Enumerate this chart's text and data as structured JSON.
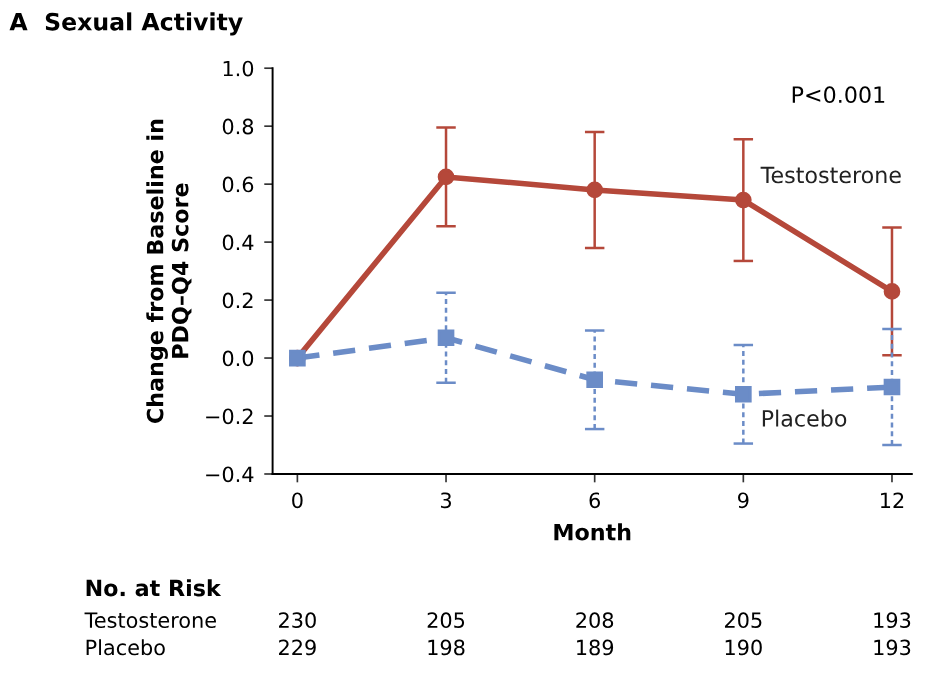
{
  "chart_data": {
    "type": "line",
    "title": "A  Sexual Activity",
    "xlabel": "Month",
    "ylabel": "Change from Baseline in\nPDQ–Q4 Score",
    "x": [
      0,
      3,
      6,
      9,
      12
    ],
    "series": [
      {
        "name": "Testosterone",
        "color": "#b5483a",
        "marker": "circle",
        "line_style": "solid",
        "values": [
          0.0,
          0.625,
          0.58,
          0.545,
          0.23
        ],
        "errors": [
          null,
          0.17,
          0.2,
          0.21,
          0.22
        ]
      },
      {
        "name": "Placebo",
        "color": "#6b8cc7",
        "marker": "square",
        "line_style": "dashed",
        "values": [
          0.0,
          0.07,
          -0.075,
          -0.125,
          -0.1
        ],
        "errors": [
          null,
          0.155,
          0.17,
          0.17,
          0.2
        ]
      }
    ],
    "xlim": [
      -0.5,
      12.4
    ],
    "xticks": [
      0,
      3,
      6,
      9,
      12
    ],
    "ylim": [
      -0.4,
      1.0
    ],
    "yticks": [
      {
        "value": -0.4,
        "label": "−0.4"
      },
      {
        "value": -0.2,
        "label": "−0.2"
      },
      {
        "value": 0.0,
        "label": "0.0"
      },
      {
        "value": 0.2,
        "label": "0.2"
      },
      {
        "value": 0.4,
        "label": "0.4"
      },
      {
        "value": 0.6,
        "label": "0.6"
      },
      {
        "value": 0.8,
        "label": "0.8"
      },
      {
        "value": 1.0,
        "label": "1.0"
      }
    ],
    "grid": false,
    "legend": false,
    "annotations": [
      "P<0.001",
      "No. at Risk",
      "Testosterone\t230\t205\t208\t205\t193",
      "Placebo\t229\t198\t189\t190\t193"
    ]
  }
}
